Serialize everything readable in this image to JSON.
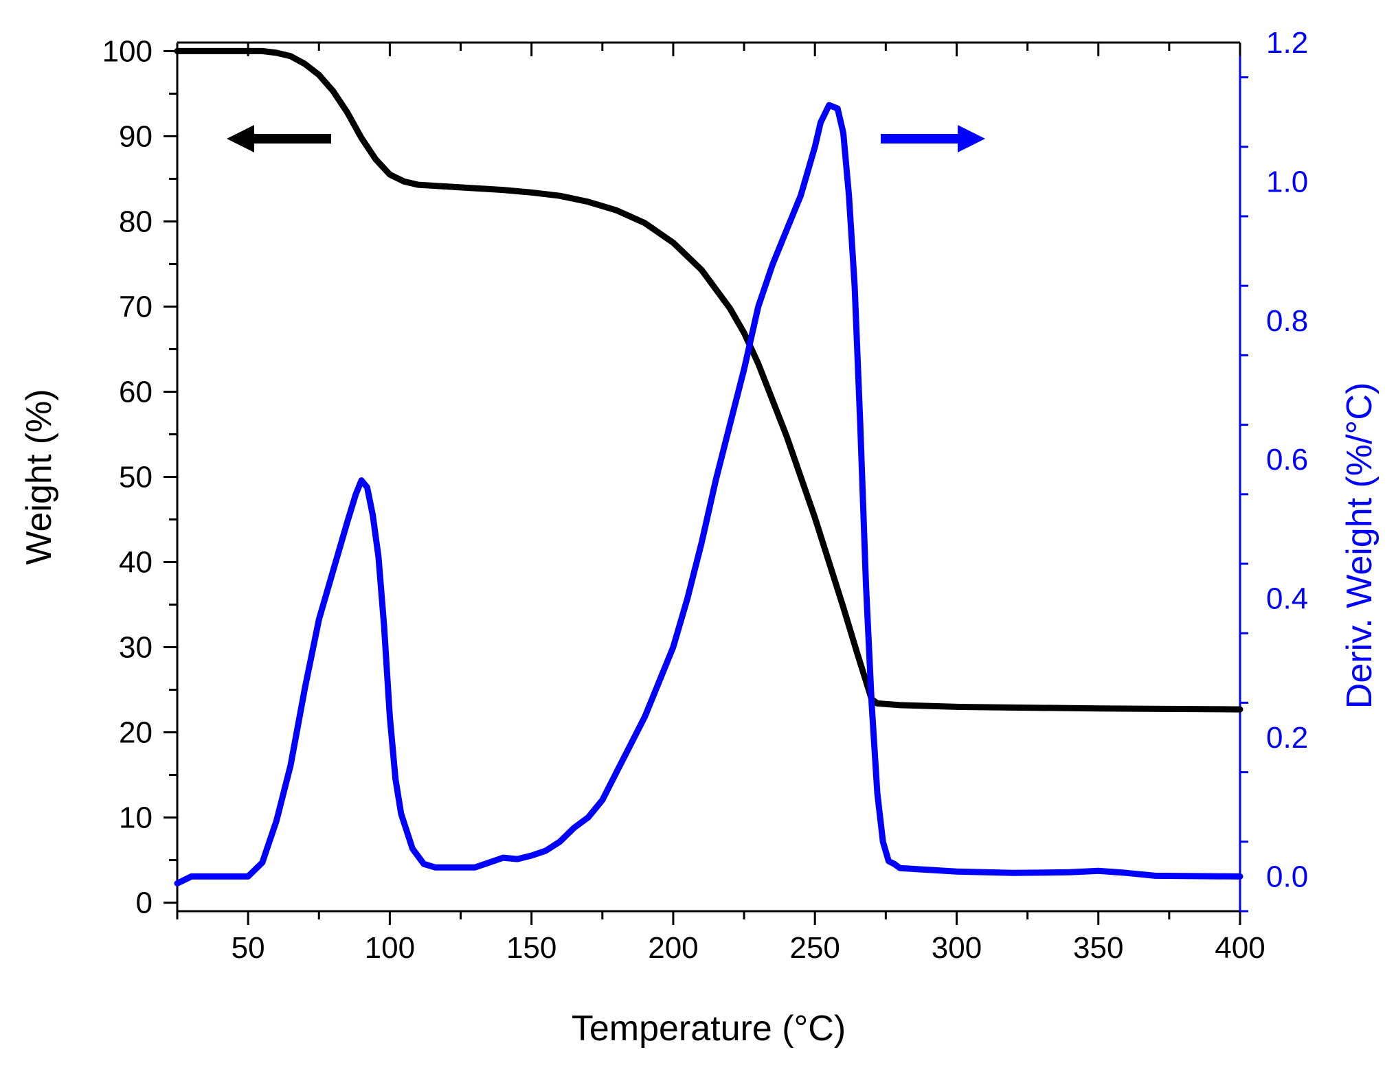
{
  "chart_data": {
    "type": "line",
    "title": "",
    "xlabel": "Temperature (°C)",
    "xlim": [
      25,
      400
    ],
    "xticks": [
      50,
      100,
      150,
      200,
      250,
      300,
      350,
      400
    ],
    "xtick_labels": [
      "50",
      "100",
      "150",
      "200",
      "250",
      "300",
      "350",
      "400"
    ],
    "ylabel_left": "Weight (%)",
    "ylim_left": [
      -1,
      101
    ],
    "yticks_left": [
      0,
      10,
      20,
      30,
      40,
      50,
      60,
      70,
      80,
      90,
      100
    ],
    "ytick_labels_left": [
      "0",
      "10",
      "20",
      "30",
      "40",
      "50",
      "60",
      "70",
      "80",
      "90",
      "100"
    ],
    "ylabel_right": "Deriv. Weight (%/°C)",
    "ylim_right": [
      -0.05,
      1.2
    ],
    "yticks_right": [
      0.0,
      0.2,
      0.4,
      0.6,
      0.8,
      1.0,
      1.2
    ],
    "ytick_labels_right": [
      "0.0",
      "0.2",
      "0.4",
      "0.6",
      "0.8",
      "1.0",
      "1.2"
    ],
    "grid": false,
    "colors": {
      "weight": "#000000",
      "deriv": "#0000ff",
      "right_axis": "#0000ff"
    },
    "series": [
      {
        "name": "Weight",
        "axis": "left",
        "color": "#000000",
        "x": [
          25,
          40,
          55,
          60,
          65,
          70,
          75,
          80,
          85,
          90,
          95,
          100,
          105,
          110,
          120,
          130,
          140,
          150,
          160,
          170,
          180,
          190,
          200,
          210,
          220,
          225,
          230,
          240,
          250,
          260,
          265,
          270,
          272,
          280,
          300,
          350,
          400
        ],
        "y": [
          100,
          100,
          100,
          99.8,
          99.4,
          98.5,
          97.2,
          95.3,
          92.8,
          89.8,
          87.3,
          85.5,
          84.7,
          84.3,
          84.1,
          83.9,
          83.7,
          83.4,
          83.0,
          82.3,
          81.3,
          79.8,
          77.5,
          74.3,
          69.8,
          66.9,
          63.3,
          54.8,
          45.2,
          34.7,
          29.2,
          23.9,
          23.4,
          23.2,
          23.0,
          22.8,
          22.7
        ]
      },
      {
        "name": "Deriv. Weight",
        "axis": "right",
        "color": "#0000ff",
        "x": [
          25,
          30,
          40,
          50,
          55,
          60,
          65,
          70,
          75,
          80,
          85,
          88,
          90,
          92,
          94,
          96,
          98,
          100,
          102,
          104,
          108,
          112,
          116,
          120,
          130,
          135,
          140,
          145,
          150,
          155,
          160,
          165,
          170,
          175,
          180,
          185,
          190,
          195,
          200,
          205,
          210,
          215,
          220,
          225,
          230,
          235,
          240,
          245,
          250,
          252,
          255,
          258,
          260,
          262,
          264,
          266,
          268,
          270,
          272,
          274,
          276,
          278,
          280,
          300,
          320,
          340,
          350,
          360,
          370,
          400
        ],
        "y": [
          -0.01,
          0.0,
          0.0,
          0.0,
          0.02,
          0.08,
          0.16,
          0.27,
          0.37,
          0.44,
          0.51,
          0.55,
          0.57,
          0.56,
          0.52,
          0.46,
          0.36,
          0.23,
          0.14,
          0.09,
          0.04,
          0.018,
          0.013,
          0.013,
          0.013,
          0.02,
          0.027,
          0.025,
          0.03,
          0.037,
          0.05,
          0.07,
          0.085,
          0.11,
          0.15,
          0.19,
          0.23,
          0.28,
          0.33,
          0.4,
          0.48,
          0.57,
          0.65,
          0.73,
          0.82,
          0.88,
          0.93,
          0.98,
          1.05,
          1.085,
          1.11,
          1.105,
          1.07,
          0.98,
          0.85,
          0.65,
          0.42,
          0.25,
          0.12,
          0.05,
          0.022,
          0.018,
          0.012,
          0.007,
          0.005,
          0.006,
          0.008,
          0.005,
          0.001,
          0.0
        ]
      }
    ],
    "annotations": [
      {
        "type": "arrow",
        "direction": "left",
        "color": "#000000",
        "target_series": "Weight"
      },
      {
        "type": "arrow",
        "direction": "right",
        "color": "#0000ff",
        "target_series": "Deriv. Weight"
      }
    ]
  }
}
